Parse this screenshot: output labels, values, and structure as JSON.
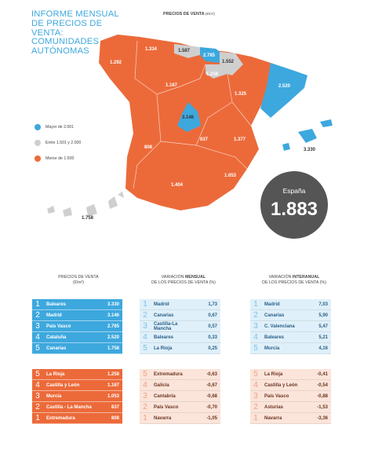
{
  "title": "INFORME MENSUAL DE PRECIOS DE VENTA: COMUNIDADES AUTÓNOMAS",
  "map_title": "PRECIOS DE VENTA",
  "map_unit": "(€/m²)",
  "legend": [
    {
      "label": "Mayor de 2.001",
      "color": "#3da8de"
    },
    {
      "label": "Entre 1.501 y 2.000",
      "color": "#cfcfcf"
    },
    {
      "label": "Menor de 1.500",
      "color": "#ec6a3a"
    }
  ],
  "map_values": {
    "galicia": "1.292",
    "asturias": "1.334",
    "cantabria": "1.587",
    "pais_vasco": "2.785",
    "navarra": "1.552",
    "la_rioja": "1.258",
    "castilla_leon": "1.167",
    "aragon": "1.325",
    "cataluna": "2.520",
    "madrid": "3.146",
    "castilla_mancha": "837",
    "valenciana": "1.377",
    "extremadura": "808",
    "murcia": "1.053",
    "andalucia": "1.404",
    "baleares": "3.330",
    "canarias": "1.758"
  },
  "spain": {
    "label": "España",
    "value": "1.883"
  },
  "columns": {
    "precios": {
      "title": "PRECIOS DE VENTA",
      "unit": "(€/m²)"
    },
    "mensual": {
      "pre": "VARIACIÓN ",
      "bold": "MENSUAL",
      "sub": "DE LOS PRECIOS DE VENTA (%)"
    },
    "interanual": {
      "pre": "VARIACIÓN ",
      "bold": "INTERANUAL",
      "sub": "DE LOS PRECIOS DE VENTA (%)"
    }
  },
  "precios_top": [
    {
      "n": "1",
      "name": "Baleares",
      "val": "3.330"
    },
    {
      "n": "2",
      "name": "Madrid",
      "val": "3.146"
    },
    {
      "n": "3",
      "name": "País Vasco",
      "val": "2.785"
    },
    {
      "n": "4",
      "name": "Cataluña",
      "val": "2.520"
    },
    {
      "n": "5",
      "name": "Canarias",
      "val": "1.758"
    }
  ],
  "precios_bottom": [
    {
      "n": "5",
      "name": "La Rioja",
      "val": "1.258"
    },
    {
      "n": "4",
      "name": "Castilla y León",
      "val": "1.167"
    },
    {
      "n": "3",
      "name": "Murcia",
      "val": "1.053"
    },
    {
      "n": "2",
      "name": "Castilla - La Mancha",
      "val": "837"
    },
    {
      "n": "1",
      "name": "Extremadura",
      "val": "808"
    }
  ],
  "mensual_top": [
    {
      "n": "1",
      "name": "Madrid",
      "val": "1,73"
    },
    {
      "n": "2",
      "name": "Canarias",
      "val": "0,67"
    },
    {
      "n": "3",
      "name": "Castilla-La Mancha",
      "val": "0,57"
    },
    {
      "n": "4",
      "name": "Baleares",
      "val": "0,33"
    },
    {
      "n": "5",
      "name": "La Rioja",
      "val": "0,25"
    }
  ],
  "mensual_bottom": [
    {
      "n": "5",
      "name": "Extremadura",
      "val": "-0,63"
    },
    {
      "n": "4",
      "name": "Galicia",
      "val": "-0,67"
    },
    {
      "n": "3",
      "name": "Cantabria",
      "val": "-0,68"
    },
    {
      "n": "2",
      "name": "País Vasco",
      "val": "-0,70"
    },
    {
      "n": "1",
      "name": "Navarra",
      "val": "-1,05"
    }
  ],
  "interanual_top": [
    {
      "n": "1",
      "name": "Madrid",
      "val": "7,03"
    },
    {
      "n": "2",
      "name": "Canarias",
      "val": "5,90"
    },
    {
      "n": "3",
      "name": "C. Valenciana",
      "val": "5,47"
    },
    {
      "n": "4",
      "name": "Baleares",
      "val": "5,21"
    },
    {
      "n": "5",
      "name": "Murcia",
      "val": "4,16"
    }
  ],
  "interanual_bottom": [
    {
      "n": "5",
      "name": "La Rioja",
      "val": "-0,41"
    },
    {
      "n": "4",
      "name": "Castilla y León",
      "val": "-0,54"
    },
    {
      "n": "3",
      "name": "País Vasco",
      "val": "-0,88"
    },
    {
      "n": "2",
      "name": "Asturias",
      "val": "-1,53"
    },
    {
      "n": "1",
      "name": "Navarra",
      "val": "-3,36"
    }
  ]
}
